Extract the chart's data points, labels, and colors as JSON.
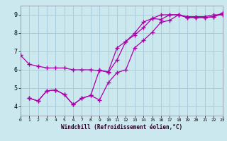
{
  "xlabel": "Windchill (Refroidissement éolien,°C)",
  "bg_color": "#cce8ef",
  "grid_color": "#aaccdd",
  "line_color": "#aa00aa",
  "marker": "+",
  "xlim": [
    0,
    23
  ],
  "ylim": [
    3.5,
    9.5
  ],
  "yticks": [
    4,
    5,
    6,
    7,
    8,
    9
  ],
  "xticks": [
    0,
    1,
    2,
    3,
    4,
    5,
    6,
    7,
    8,
    9,
    10,
    11,
    12,
    13,
    14,
    15,
    16,
    17,
    18,
    19,
    20,
    21,
    22,
    23
  ],
  "series": [
    {
      "x": [
        0,
        1,
        2,
        3,
        4,
        5,
        6,
        7,
        8,
        9,
        10,
        11,
        12,
        13,
        14,
        15,
        16,
        17,
        18,
        19,
        20,
        21,
        22,
        23
      ],
      "y": [
        6.8,
        6.3,
        6.2,
        6.1,
        6.1,
        6.1,
        6.0,
        6.0,
        6.0,
        5.95,
        5.9,
        7.2,
        7.55,
        8.0,
        8.6,
        8.8,
        8.75,
        9.0,
        9.0,
        8.9,
        8.9,
        8.9,
        9.0,
        9.0
      ]
    },
    {
      "x": [
        1,
        2,
        3,
        4,
        5,
        6,
        7,
        8,
        9,
        10,
        11,
        12,
        13,
        14,
        15,
        16,
        17,
        18,
        19,
        20,
        21,
        22,
        23
      ],
      "y": [
        4.45,
        4.3,
        4.85,
        4.9,
        4.65,
        4.1,
        4.45,
        4.6,
        4.35,
        5.3,
        5.85,
        6.0,
        7.2,
        7.6,
        8.05,
        8.6,
        8.7,
        9.0,
        8.85,
        8.85,
        8.85,
        8.9,
        9.1
      ]
    },
    {
      "x": [
        1,
        2,
        3,
        4,
        5,
        6,
        7,
        8,
        9,
        10,
        11,
        12,
        13,
        14,
        15,
        16,
        17,
        18,
        19,
        20,
        21,
        22,
        23
      ],
      "y": [
        4.45,
        4.3,
        4.85,
        4.9,
        4.65,
        4.1,
        4.45,
        4.6,
        6.0,
        5.85,
        6.55,
        7.55,
        7.9,
        8.3,
        8.8,
        9.0,
        9.0,
        9.0,
        8.85,
        8.85,
        8.85,
        8.9,
        9.05
      ]
    }
  ]
}
